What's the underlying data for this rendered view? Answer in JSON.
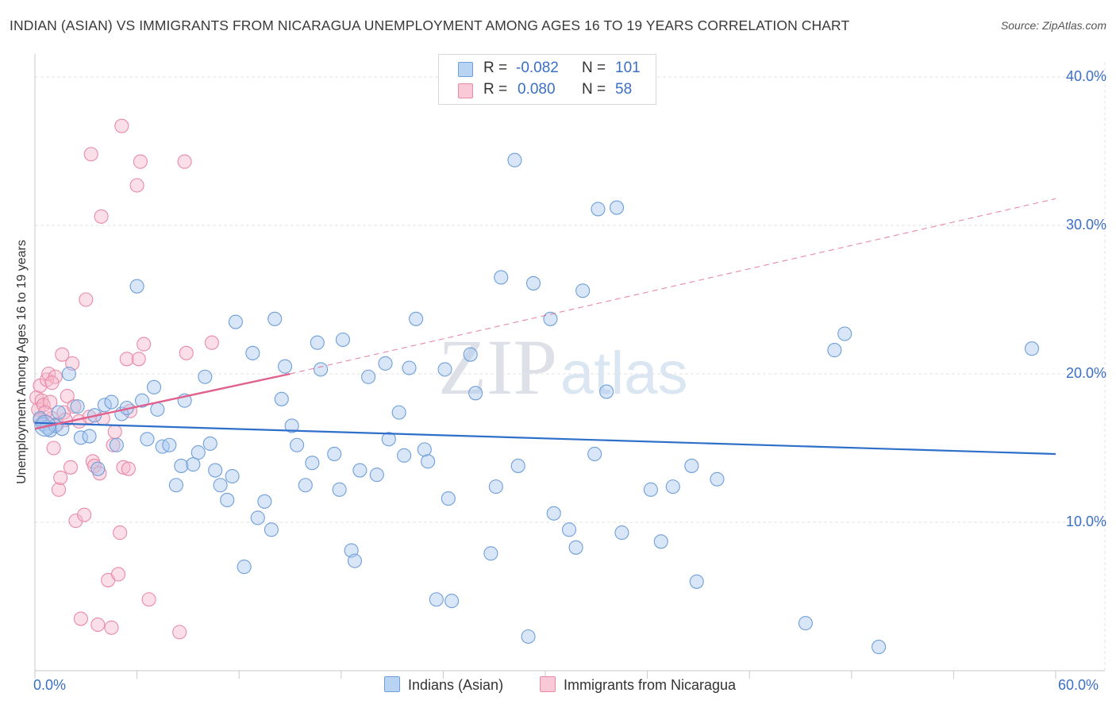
{
  "header": {
    "title": "INDIAN (ASIAN) VS IMMIGRANTS FROM NICARAGUA UNEMPLOYMENT AMONG AGES 16 TO 19 YEARS CORRELATION CHART",
    "source": "Source: ZipAtlas.com"
  },
  "watermark": {
    "zip": "ZIP",
    "atlas": "atlas"
  },
  "legend": {
    "r_label": "R =",
    "n_label": "N =",
    "rows": [
      {
        "r": "-0.082",
        "n": "101"
      },
      {
        "r": "0.080",
        "n": "58"
      }
    ]
  },
  "colors": {
    "blue_fill": "#a9c8ef",
    "blue_stroke": "#6f9fd8",
    "blue_line": "#2e6fca",
    "pink_fill": "#f6b9cb",
    "pink_stroke": "#e88aa8",
    "pink_line": "#e0608e",
    "axis_label": "#3b6fc4",
    "grid": "#e3e3e3"
  },
  "chart_data": {
    "type": "scatter",
    "title": "INDIAN (ASIAN) VS IMMIGRANTS FROM NICARAGUA UNEMPLOYMENT AMONG AGES 16 TO 19 YEARS CORRELATION CHART",
    "xlabel": "",
    "ylabel": "Unemployment Among Ages 16 to 19 years",
    "xlim": [
      0,
      60
    ],
    "ylim": [
      0,
      40
    ],
    "x_tick_labels": {
      "min": "0.0%",
      "max": "60.0%"
    },
    "y_ticks": [
      {
        "value": 10,
        "label": "10.0%"
      },
      {
        "value": 20,
        "label": "20.0%"
      },
      {
        "value": 30,
        "label": "30.0%"
      },
      {
        "value": 40,
        "label": "40.0%"
      }
    ],
    "grid": true,
    "legend_position": "top-center",
    "series": [
      {
        "name": "Indians (Asian)",
        "r": -0.082,
        "n": 101,
        "trend": {
          "x1": 0,
          "y1": 16.7,
          "x2": 60,
          "y2": 14.6
        },
        "points": [
          [
            0.3,
            17.0
          ],
          [
            0.5,
            16.6
          ],
          [
            0.7,
            16.4
          ],
          [
            0.9,
            16.2
          ],
          [
            1.2,
            16.5
          ],
          [
            1.4,
            17.4
          ],
          [
            1.6,
            16.3
          ],
          [
            2.0,
            20.0
          ],
          [
            2.5,
            17.8
          ],
          [
            2.7,
            15.7
          ],
          [
            3.2,
            15.8
          ],
          [
            3.5,
            17.2
          ],
          [
            3.7,
            13.6
          ],
          [
            4.1,
            17.9
          ],
          [
            4.5,
            18.1
          ],
          [
            4.8,
            15.2
          ],
          [
            5.1,
            17.3
          ],
          [
            5.4,
            17.7
          ],
          [
            6.0,
            25.9
          ],
          [
            6.3,
            18.2
          ],
          [
            6.6,
            15.6
          ],
          [
            7.0,
            19.1
          ],
          [
            7.2,
            17.6
          ],
          [
            7.5,
            15.1
          ],
          [
            7.9,
            15.2
          ],
          [
            8.3,
            12.5
          ],
          [
            8.6,
            13.8
          ],
          [
            8.8,
            18.2
          ],
          [
            9.3,
            13.9
          ],
          [
            9.6,
            14.7
          ],
          [
            10.0,
            19.8
          ],
          [
            10.3,
            15.3
          ],
          [
            10.6,
            13.5
          ],
          [
            10.9,
            12.5
          ],
          [
            11.3,
            11.5
          ],
          [
            11.6,
            13.1
          ],
          [
            11.8,
            23.5
          ],
          [
            12.3,
            7.0
          ],
          [
            12.8,
            21.4
          ],
          [
            13.1,
            10.3
          ],
          [
            13.5,
            11.4
          ],
          [
            13.9,
            9.5
          ],
          [
            14.1,
            23.7
          ],
          [
            14.5,
            18.3
          ],
          [
            14.7,
            20.5
          ],
          [
            15.1,
            16.5
          ],
          [
            15.4,
            15.2
          ],
          [
            15.9,
            12.5
          ],
          [
            16.3,
            14.0
          ],
          [
            16.6,
            22.1
          ],
          [
            16.8,
            20.3
          ],
          [
            17.6,
            14.6
          ],
          [
            17.9,
            12.2
          ],
          [
            18.1,
            22.3
          ],
          [
            18.6,
            8.1
          ],
          [
            18.8,
            7.4
          ],
          [
            19.1,
            13.5
          ],
          [
            19.6,
            19.8
          ],
          [
            20.1,
            13.2
          ],
          [
            20.6,
            20.7
          ],
          [
            20.8,
            15.6
          ],
          [
            21.4,
            17.4
          ],
          [
            21.7,
            14.5
          ],
          [
            22.0,
            20.4
          ],
          [
            22.4,
            23.7
          ],
          [
            22.9,
            14.9
          ],
          [
            23.1,
            14.1
          ],
          [
            23.6,
            4.8
          ],
          [
            24.1,
            20.3
          ],
          [
            24.3,
            11.6
          ],
          [
            24.5,
            4.7
          ],
          [
            25.6,
            21.3
          ],
          [
            25.9,
            18.7
          ],
          [
            26.8,
            7.9
          ],
          [
            27.1,
            12.4
          ],
          [
            27.4,
            26.5
          ],
          [
            28.2,
            34.4
          ],
          [
            28.4,
            13.8
          ],
          [
            29.0,
            2.3
          ],
          [
            29.3,
            26.1
          ],
          [
            30.3,
            23.7
          ],
          [
            30.5,
            10.6
          ],
          [
            31.4,
            9.5
          ],
          [
            31.8,
            8.3
          ],
          [
            32.2,
            25.6
          ],
          [
            32.9,
            14.6
          ],
          [
            33.1,
            31.1
          ],
          [
            33.6,
            18.8
          ],
          [
            34.2,
            31.2
          ],
          [
            34.5,
            9.3
          ],
          [
            36.2,
            12.2
          ],
          [
            36.8,
            8.7
          ],
          [
            37.5,
            12.4
          ],
          [
            38.6,
            13.8
          ],
          [
            38.9,
            6.0
          ],
          [
            40.1,
            12.9
          ],
          [
            45.3,
            3.2
          ],
          [
            47.0,
            21.6
          ],
          [
            47.6,
            22.7
          ],
          [
            49.6,
            1.6
          ],
          [
            58.6,
            21.7
          ]
        ]
      },
      {
        "name": "Immigrants from Nicaragua",
        "r": 0.08,
        "n": 58,
        "trend": {
          "x1": 0,
          "y1": 16.3,
          "x2": 15,
          "y2": 20.0,
          "dash_to": {
            "x": 60,
            "y": 31.8
          }
        },
        "points": [
          [
            0.1,
            18.4
          ],
          [
            0.2,
            17.6
          ],
          [
            0.3,
            19.2
          ],
          [
            0.4,
            18.2
          ],
          [
            0.5,
            17.9
          ],
          [
            0.6,
            16.8
          ],
          [
            0.7,
            19.6
          ],
          [
            0.8,
            20.0
          ],
          [
            0.9,
            18.1
          ],
          [
            1.0,
            17.0
          ],
          [
            1.1,
            15.0
          ],
          [
            1.2,
            19.8
          ],
          [
            1.3,
            16.6
          ],
          [
            1.4,
            12.2
          ],
          [
            1.5,
            13.0
          ],
          [
            1.6,
            21.3
          ],
          [
            1.7,
            17.4
          ],
          [
            1.8,
            16.9
          ],
          [
            1.9,
            18.5
          ],
          [
            2.1,
            13.7
          ],
          [
            2.2,
            20.7
          ],
          [
            2.3,
            17.8
          ],
          [
            2.4,
            10.1
          ],
          [
            2.6,
            16.8
          ],
          [
            2.9,
            10.5
          ],
          [
            3.0,
            25.0
          ],
          [
            3.2,
            17.1
          ],
          [
            3.3,
            34.8
          ],
          [
            3.4,
            14.1
          ],
          [
            3.5,
            13.8
          ],
          [
            3.7,
            3.1
          ],
          [
            3.8,
            13.3
          ],
          [
            3.9,
            30.6
          ],
          [
            4.0,
            17.0
          ],
          [
            4.3,
            6.1
          ],
          [
            4.5,
            2.9
          ],
          [
            4.6,
            15.2
          ],
          [
            4.7,
            16.1
          ],
          [
            4.9,
            6.5
          ],
          [
            5.0,
            9.3
          ],
          [
            5.1,
            36.7
          ],
          [
            5.2,
            13.7
          ],
          [
            5.4,
            21.0
          ],
          [
            5.5,
            13.6
          ],
          [
            5.6,
            17.5
          ],
          [
            6.0,
            32.7
          ],
          [
            6.1,
            21.0
          ],
          [
            6.2,
            34.3
          ],
          [
            6.4,
            22.0
          ],
          [
            6.7,
            4.8
          ],
          [
            8.5,
            2.6
          ],
          [
            8.8,
            34.3
          ],
          [
            8.9,
            21.4
          ],
          [
            10.4,
            22.1
          ],
          [
            1.0,
            19.4
          ],
          [
            0.6,
            17.4
          ],
          [
            0.3,
            16.9
          ],
          [
            2.7,
            3.5
          ]
        ]
      }
    ]
  },
  "bottom_legend": {
    "items": [
      {
        "label": "Indians (Asian)"
      },
      {
        "label": "Immigrants from Nicaragua"
      }
    ]
  }
}
